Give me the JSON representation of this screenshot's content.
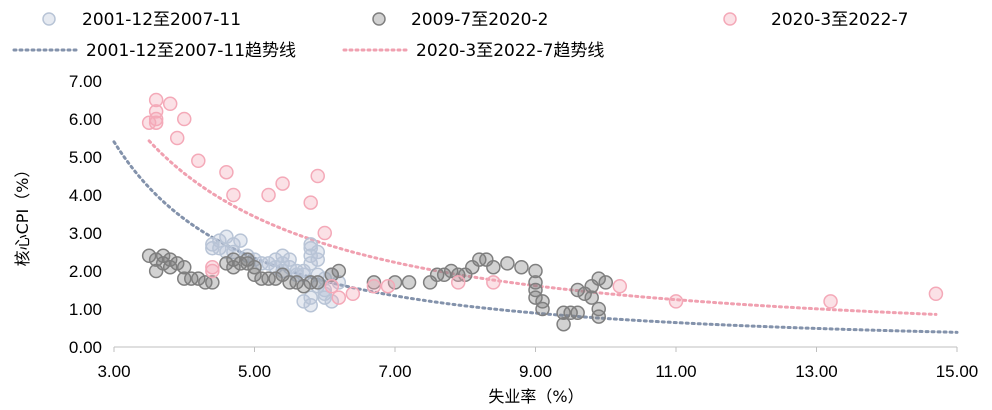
{
  "chart_data": {
    "type": "scatter",
    "xlabel": "失业率（%）",
    "ylabel": "核心CPI（%）",
    "xlim": [
      3.0,
      15.0
    ],
    "ylim": [
      0.0,
      7.0
    ],
    "x_ticks": [
      "3.00",
      "5.00",
      "7.00",
      "9.00",
      "11.00",
      "13.00",
      "15.00"
    ],
    "y_ticks": [
      "0.00",
      "1.00",
      "2.00",
      "3.00",
      "4.00",
      "5.00",
      "6.00",
      "7.00"
    ],
    "grid": false,
    "legend_position": "top",
    "series": [
      {
        "name": "2001-12至2007-11",
        "kind": "scatter",
        "color": "#b8c4d6",
        "points": [
          [
            4.4,
            2.6
          ],
          [
            4.4,
            2.7
          ],
          [
            4.5,
            2.8
          ],
          [
            4.5,
            2.6
          ],
          [
            4.6,
            2.9
          ],
          [
            4.7,
            2.7
          ],
          [
            4.8,
            2.8
          ],
          [
            4.6,
            2.5
          ],
          [
            4.7,
            2.5
          ],
          [
            4.9,
            2.4
          ],
          [
            5.0,
            2.3
          ],
          [
            5.1,
            2.2
          ],
          [
            5.2,
            2.2
          ],
          [
            5.3,
            2.3
          ],
          [
            5.4,
            2.4
          ],
          [
            5.4,
            2.2
          ],
          [
            5.5,
            2.1
          ],
          [
            5.5,
            2.3
          ],
          [
            5.6,
            2.0
          ],
          [
            5.7,
            1.9
          ],
          [
            5.7,
            1.2
          ],
          [
            5.8,
            1.1
          ],
          [
            5.8,
            1.3
          ],
          [
            5.8,
            2.6
          ],
          [
            5.8,
            2.4
          ],
          [
            5.8,
            2.2
          ],
          [
            5.9,
            2.5
          ],
          [
            5.9,
            1.9
          ],
          [
            5.9,
            1.6
          ],
          [
            6.0,
            1.8
          ],
          [
            6.0,
            1.5
          ],
          [
            6.0,
            1.3
          ],
          [
            6.0,
            1.4
          ],
          [
            6.1,
            1.2
          ],
          [
            6.1,
            1.9
          ],
          [
            6.2,
            1.7
          ],
          [
            5.8,
            2.7
          ],
          [
            5.9,
            2.3
          ],
          [
            5.7,
            2.0
          ],
          [
            5.6,
            1.9
          ],
          [
            5.4,
            2.0
          ],
          [
            5.3,
            2.1
          ]
        ]
      },
      {
        "name": "2009-7至2020-2",
        "kind": "scatter",
        "color": "#7f7f7f",
        "points": [
          [
            3.5,
            2.4
          ],
          [
            3.6,
            2.3
          ],
          [
            3.6,
            2.0
          ],
          [
            3.7,
            2.2
          ],
          [
            3.7,
            2.4
          ],
          [
            3.8,
            2.1
          ],
          [
            3.8,
            2.3
          ],
          [
            3.9,
            2.2
          ],
          [
            4.0,
            2.1
          ],
          [
            4.0,
            1.8
          ],
          [
            4.1,
            1.8
          ],
          [
            4.2,
            1.8
          ],
          [
            4.3,
            1.7
          ],
          [
            4.4,
            1.7
          ],
          [
            4.6,
            2.2
          ],
          [
            4.7,
            2.3
          ],
          [
            4.7,
            2.1
          ],
          [
            4.8,
            2.2
          ],
          [
            4.9,
            2.3
          ],
          [
            4.9,
            2.2
          ],
          [
            5.0,
            2.1
          ],
          [
            5.0,
            1.9
          ],
          [
            5.1,
            1.8
          ],
          [
            5.2,
            1.8
          ],
          [
            5.3,
            1.8
          ],
          [
            5.4,
            1.9
          ],
          [
            5.5,
            1.7
          ],
          [
            5.6,
            1.7
          ],
          [
            5.7,
            1.6
          ],
          [
            5.8,
            1.7
          ],
          [
            5.9,
            1.7
          ],
          [
            6.1,
            1.9
          ],
          [
            6.2,
            2.0
          ],
          [
            6.7,
            1.7
          ],
          [
            7.0,
            1.7
          ],
          [
            7.2,
            1.7
          ],
          [
            7.5,
            1.7
          ],
          [
            7.6,
            1.9
          ],
          [
            7.7,
            1.9
          ],
          [
            7.8,
            2.0
          ],
          [
            7.9,
            1.9
          ],
          [
            8.0,
            1.9
          ],
          [
            8.1,
            2.1
          ],
          [
            8.2,
            2.3
          ],
          [
            8.3,
            2.3
          ],
          [
            8.4,
            2.1
          ],
          [
            8.6,
            2.2
          ],
          [
            8.8,
            2.1
          ],
          [
            9.0,
            2.0
          ],
          [
            9.0,
            1.7
          ],
          [
            9.0,
            1.5
          ],
          [
            9.0,
            1.3
          ],
          [
            9.1,
            1.2
          ],
          [
            9.1,
            1.0
          ],
          [
            9.4,
            0.6
          ],
          [
            9.4,
            0.9
          ],
          [
            9.5,
            0.9
          ],
          [
            9.6,
            0.9
          ],
          [
            9.6,
            1.5
          ],
          [
            9.7,
            1.4
          ],
          [
            9.8,
            1.3
          ],
          [
            9.8,
            1.6
          ],
          [
            9.9,
            1.8
          ],
          [
            9.9,
            1.0
          ],
          [
            9.9,
            0.8
          ],
          [
            10.0,
            1.7
          ]
        ]
      },
      {
        "name": "2020-3至2022-7",
        "kind": "scatter",
        "color": "#f4a9b8",
        "points": [
          [
            3.5,
            5.9
          ],
          [
            3.6,
            5.9
          ],
          [
            3.6,
            6.0
          ],
          [
            3.6,
            6.2
          ],
          [
            3.6,
            6.5
          ],
          [
            3.8,
            6.4
          ],
          [
            3.9,
            5.5
          ],
          [
            4.0,
            6.0
          ],
          [
            4.2,
            4.9
          ],
          [
            4.4,
            2.0
          ],
          [
            4.4,
            2.1
          ],
          [
            4.6,
            4.6
          ],
          [
            4.7,
            4.0
          ],
          [
            5.2,
            4.0
          ],
          [
            5.4,
            4.3
          ],
          [
            5.8,
            3.8
          ],
          [
            5.9,
            4.5
          ],
          [
            6.0,
            3.0
          ],
          [
            6.1,
            1.6
          ],
          [
            6.2,
            1.3
          ],
          [
            6.4,
            1.4
          ],
          [
            6.7,
            1.6
          ],
          [
            6.9,
            1.6
          ],
          [
            7.9,
            1.7
          ],
          [
            8.4,
            1.7
          ],
          [
            10.2,
            1.6
          ],
          [
            11.0,
            1.2
          ],
          [
            13.2,
            1.2
          ],
          [
            14.7,
            1.4
          ]
        ]
      },
      {
        "name": "2001-12至2007-11趋势线",
        "kind": "trendline",
        "color": "#8392ab",
        "x_range": [
          3.0,
          15.0
        ]
      },
      {
        "name": "2020-3至2022-7趋势线",
        "kind": "trendline",
        "color": "#f0a0b0",
        "x_range": [
          3.5,
          14.7
        ]
      }
    ]
  }
}
